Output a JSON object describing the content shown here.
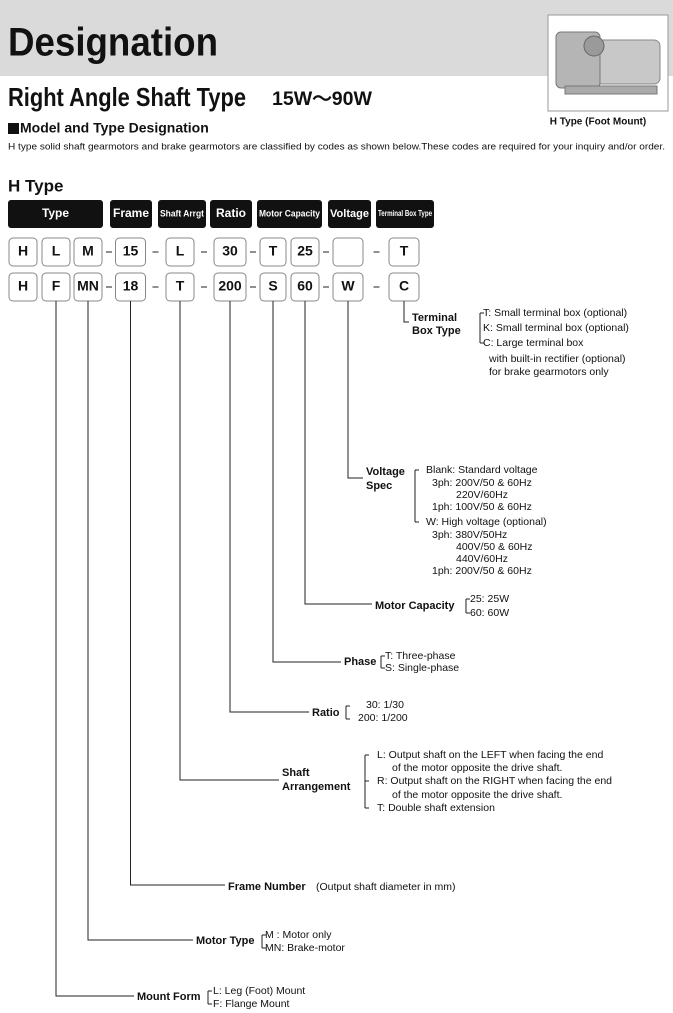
{
  "header": {
    "title": "Designation",
    "subtitle": "Right Angle Shaft Type",
    "range": "15W〜90W",
    "image_caption": "H Type (Foot Mount)"
  },
  "section": {
    "heading": "Model and Type Designation",
    "description": "H type solid shaft gearmotors and brake gearmotors are classified by codes as shown below.These codes are required for your inquiry and/or order."
  },
  "diagram": {
    "title": "H Type",
    "columns": [
      "Type",
      "Frame",
      "Shaft Arrgt",
      "Ratio",
      "Motor Capacity",
      "Voltage",
      "Terminal Box Type"
    ],
    "rows": [
      [
        "H",
        "L",
        "M",
        "15",
        "L",
        "30",
        "T",
        "25",
        null,
        "T"
      ],
      [
        "H",
        "F",
        "MN",
        "18",
        "T",
        "200",
        "S",
        "60",
        "W",
        "C"
      ]
    ]
  },
  "legends": [
    {
      "label": [
        "Terminal",
        "Box Type"
      ],
      "options": [
        "T: Small terminal box (optional)",
        "K: Small terminal box (optional)",
        "C: Large terminal box",
        "with built-in rectifier (optional)",
        "for brake gearmotors only"
      ]
    },
    {
      "label": [
        "Voltage",
        "Spec"
      ],
      "options": [
        "Blank: Standard voltage",
        "3ph: 200V/50 & 60Hz",
        "220V/60Hz",
        "1ph: 100V/50 & 60Hz",
        "W: High voltage (optional)",
        "3ph: 380V/50Hz",
        "400V/50 & 60Hz",
        "440V/60Hz",
        "1ph: 200V/50 & 60Hz"
      ]
    },
    {
      "label": [
        "Motor Capacity"
      ],
      "options": [
        "25: 25W",
        "60: 60W"
      ]
    },
    {
      "label": [
        "Phase"
      ],
      "options": [
        "T: Three-phase",
        "S: Single-phase"
      ]
    },
    {
      "label": [
        "Ratio"
      ],
      "options": [
        "30: 1/30",
        "200: 1/200"
      ]
    },
    {
      "label": [
        "Shaft",
        "Arrangement"
      ],
      "options": [
        "L: Output shaft on the LEFT when facing the end",
        "of the motor opposite the drive shaft.",
        "R: Output shaft on the RIGHT when facing the end",
        "of the motor opposite the drive shaft.",
        "T: Double shaft extension"
      ]
    },
    {
      "label": [
        "Frame Number"
      ],
      "options": [
        "(Output shaft diameter in mm)"
      ]
    },
    {
      "label": [
        "Motor Type"
      ],
      "options": [
        "M : Motor only",
        "MN: Brake-motor"
      ]
    },
    {
      "label": [
        "Mount Form"
      ],
      "options": [
        "L: Leg (Foot) Mount",
        "F: Flange Mount"
      ]
    }
  ]
}
